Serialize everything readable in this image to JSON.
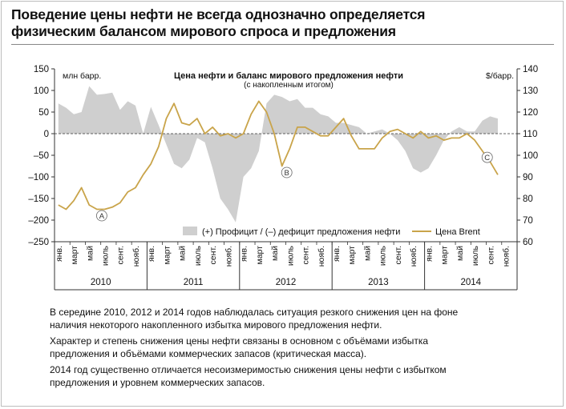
{
  "headline": {
    "line1": "Поведение цены нефти не всегда однозначно определяется",
    "line2": "физическим балансом мирового спроса и предложения"
  },
  "notes": [
    {
      "line1": "В середине 2010, 2012 и 2014 годов наблюдалась ситуация резкого снижения цен на фоне",
      "line2": "наличия некоторого накопленного избытка мирового предложения нефти."
    },
    {
      "line1": "Характер и степень снижения цены нефти связаны в основном с объёмами избытка",
      "line2": "предложения и объёмами коммерческих запасов (критическая масса)."
    },
    {
      "line1": "2014 год существенно отличается несоизмеримостью снижения цены нефти с избытком",
      "line2": "предложения и уровнем коммерческих запасов."
    }
  ],
  "chart_data": {
    "type": "area+line",
    "title": "Цена нефти и баланс мирового предложения нефти",
    "subtitle": "(с накопленным итогом)",
    "y_left": {
      "label": "млн барр.",
      "min": -250,
      "max": 150,
      "ticks": [
        150,
        100,
        50,
        0,
        -50,
        -100,
        -150,
        -200,
        -250
      ]
    },
    "y_right": {
      "label": "$/барр.",
      "min": 60,
      "max": 140,
      "ticks": [
        140,
        130,
        120,
        110,
        100,
        90,
        80,
        70,
        60
      ]
    },
    "month_labels": [
      "янв.",
      "март",
      "май",
      "июль",
      "сент.",
      "нояб."
    ],
    "years": [
      "2010",
      "2011",
      "2012",
      "2013",
      "2014"
    ],
    "x": [
      "2010-01",
      "2010-02",
      "2010-03",
      "2010-04",
      "2010-05",
      "2010-06",
      "2010-07",
      "2010-08",
      "2010-09",
      "2010-10",
      "2010-11",
      "2010-12",
      "2011-01",
      "2011-02",
      "2011-03",
      "2011-04",
      "2011-05",
      "2011-06",
      "2011-07",
      "2011-08",
      "2011-09",
      "2011-10",
      "2011-11",
      "2011-12",
      "2012-01",
      "2012-02",
      "2012-03",
      "2012-04",
      "2012-05",
      "2012-06",
      "2012-07",
      "2012-08",
      "2012-09",
      "2012-10",
      "2012-11",
      "2012-12",
      "2013-01",
      "2013-02",
      "2013-03",
      "2013-04",
      "2013-05",
      "2013-06",
      "2013-07",
      "2013-08",
      "2013-09",
      "2013-10",
      "2013-11",
      "2013-12",
      "2014-01",
      "2014-02",
      "2014-03",
      "2014-04",
      "2014-05",
      "2014-06",
      "2014-07",
      "2014-08",
      "2014-09",
      "2014-10"
    ],
    "series": [
      {
        "name": "(+) Профицит / (–) дефицит предложения нефти",
        "type": "area",
        "axis": "left",
        "color": "#cfcfcf",
        "values": [
          70,
          60,
          45,
          50,
          110,
          90,
          92,
          95,
          55,
          75,
          65,
          0,
          62,
          20,
          -25,
          -70,
          -80,
          -60,
          -10,
          -20,
          -80,
          -150,
          -175,
          -205,
          -100,
          -80,
          -40,
          70,
          90,
          85,
          75,
          80,
          60,
          60,
          45,
          40,
          25,
          25,
          20,
          15,
          0,
          5,
          10,
          0,
          -15,
          -40,
          -80,
          -90,
          -80,
          -50,
          -15,
          5,
          15,
          5,
          5,
          30,
          40,
          35
        ]
      },
      {
        "name": "Цена Brent",
        "type": "line",
        "axis": "right",
        "color": "#c9a44a",
        "values": [
          77,
          75,
          79,
          85,
          77,
          75,
          75,
          76,
          78,
          83,
          85,
          91,
          96,
          104,
          117,
          124,
          115,
          114,
          117,
          110,
          113,
          109,
          110,
          108,
          110,
          119,
          125,
          120,
          110,
          95,
          103,
          113,
          113,
          111,
          109,
          109,
          113,
          117,
          109,
          103,
          103,
          103,
          108,
          111,
          112,
          110,
          108,
          111,
          108,
          109,
          107,
          108,
          108,
          110,
          107,
          102,
          97,
          91
        ],
        "markers": [
          {
            "label": "A",
            "index": 5
          },
          {
            "label": "B",
            "index": 29
          },
          {
            "label": "C",
            "index": 55
          }
        ]
      }
    ],
    "legend_position": "bottom-inside"
  }
}
